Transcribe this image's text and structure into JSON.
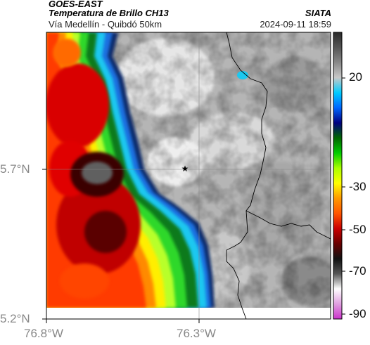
{
  "header": {
    "satellite": "GOES-EAST",
    "product": "Temperatura de Brillo CH13",
    "route": "Vía Medellín - Quibdó 50km",
    "organization": "SIATA",
    "datetime": "2024-09-11 18:59"
  },
  "axes": {
    "x_ticks": [
      "76.8°W",
      "76.3°W"
    ],
    "y_ticks": [
      "5.7°N",
      "5.2°N"
    ],
    "x_range": [
      -76.8,
      -76.0
    ],
    "y_range": [
      5.2,
      6.0
    ]
  },
  "colorbar": {
    "ticks": [
      "20",
      "-30",
      "-50",
      "-70",
      "-90"
    ],
    "palette": [
      "#cc33cc",
      "#e0a0e0",
      "#ffffff",
      "#555555",
      "#111111",
      "#6a0000",
      "#cc0000",
      "#ff5500",
      "#ff9900",
      "#ffff00",
      "#aaff00",
      "#00cc00",
      "#006600",
      "#000080",
      "#0066ff",
      "#00ccff",
      "#c8c8c8",
      "#888888",
      "#555555",
      "#2a2a2a"
    ]
  },
  "marker": {
    "icon": "star-icon",
    "lat": 5.7,
    "lon": -76.3
  },
  "features": [
    "coastline",
    "borders",
    "grid"
  ],
  "chart_data": {
    "type": "heatmap",
    "title": "Temperatura de Brillo CH13",
    "xlim": [
      -76.8,
      -76.0
    ],
    "ylim": [
      5.2,
      6.0
    ],
    "x_ticks": [
      -76.8,
      -76.3
    ],
    "y_ticks": [
      5.2,
      5.7
    ],
    "colorbar_ticks": [
      20,
      -30,
      -50,
      -70,
      -90
    ]
  }
}
